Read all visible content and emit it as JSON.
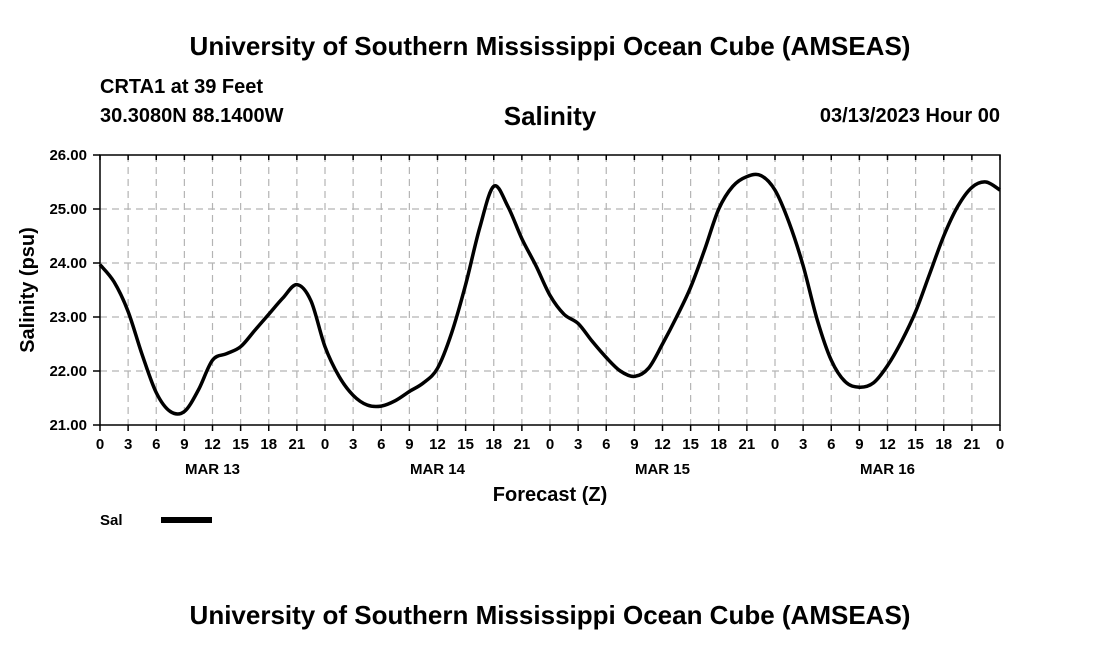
{
  "header": {
    "title": "University of Southern Mississippi Ocean Cube (AMSEAS)",
    "station": "CRTA1 at 39 Feet",
    "coords": "30.3080N  88.1400W",
    "run_time": "03/13/2023 Hour 00"
  },
  "footer": {
    "title": "University of Southern Mississippi Ocean Cube (AMSEAS)"
  },
  "chart_data": {
    "type": "line",
    "title": "Salinity",
    "xlabel": "Forecast (Z)",
    "ylabel": "Salinity (psu)",
    "xlim": [
      0,
      96
    ],
    "ylim": [
      21.0,
      26.0
    ],
    "yticks": [
      "21.00",
      "22.00",
      "23.00",
      "24.00",
      "25.00",
      "26.00"
    ],
    "xtick_labels": [
      "0",
      "3",
      "6",
      "9",
      "12",
      "15",
      "18",
      "21",
      "0",
      "3",
      "6",
      "9",
      "12",
      "15",
      "18",
      "21",
      "0",
      "3",
      "6",
      "9",
      "12",
      "15",
      "18",
      "21",
      "0",
      "3",
      "6",
      "9",
      "12",
      "15",
      "18",
      "21",
      "0"
    ],
    "day_labels": [
      {
        "label": "MAR 13",
        "hour": 12
      },
      {
        "label": "MAR 14",
        "hour": 36
      },
      {
        "label": "MAR 15",
        "hour": 60
      },
      {
        "label": "MAR 16",
        "hour": 84
      }
    ],
    "grid": true,
    "legend": {
      "label": "Sal",
      "placement": "bottom-left"
    },
    "color": "#000000",
    "series": [
      {
        "name": "Sal",
        "x": [
          0,
          1.5,
          3,
          4.5,
          6,
          7.5,
          9,
          10.5,
          12,
          13.5,
          15,
          16.5,
          18,
          19.5,
          21,
          22.5,
          24,
          25.5,
          27,
          28.5,
          30,
          31.5,
          33,
          34.5,
          36,
          37.5,
          39,
          40.5,
          42,
          43.5,
          45,
          46.5,
          48,
          49.5,
          51,
          52.5,
          54,
          55.5,
          57,
          58.5,
          60,
          61.5,
          63,
          64.5,
          66,
          67.5,
          69,
          70.5,
          72,
          73.5,
          75,
          76.5,
          78,
          79.5,
          81,
          82.5,
          84,
          85.5,
          87,
          88.5,
          90,
          91.5,
          93,
          94.5,
          96
        ],
        "values": [
          23.97,
          23.65,
          23.1,
          22.3,
          21.6,
          21.25,
          21.25,
          21.65,
          22.2,
          22.32,
          22.45,
          22.75,
          23.05,
          23.35,
          23.6,
          23.3,
          22.45,
          21.9,
          21.55,
          21.37,
          21.35,
          21.45,
          21.62,
          21.78,
          22.05,
          22.7,
          23.6,
          24.65,
          25.42,
          25.05,
          24.45,
          23.95,
          23.4,
          23.05,
          22.88,
          22.55,
          22.25,
          22.0,
          21.9,
          22.05,
          22.5,
          23.0,
          23.55,
          24.25,
          25.0,
          25.42,
          25.6,
          25.62,
          25.35,
          24.75,
          23.95,
          22.95,
          22.2,
          21.8,
          21.7,
          21.78,
          22.1,
          22.55,
          23.1,
          23.8,
          24.5,
          25.05,
          25.4,
          25.5,
          25.35
        ]
      }
    ]
  }
}
